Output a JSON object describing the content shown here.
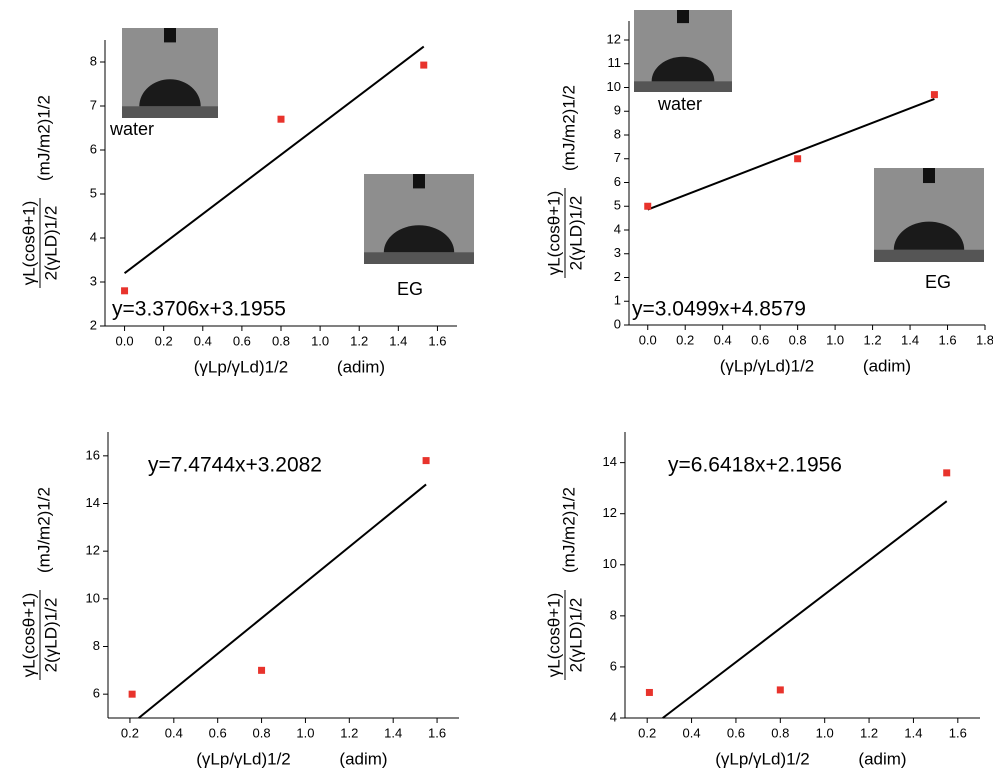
{
  "chart_data": [
    {
      "type": "scatter",
      "color": "#e8332c",
      "line_color": "#000000",
      "x": [
        0,
        0.8,
        1.53
      ],
      "values": [
        2.8,
        6.7,
        7.93
      ],
      "fit": {
        "x": [
          0,
          1.53
        ],
        "y": [
          3.2,
          8.35
        ]
      },
      "annotation": "y=3.3706x+3.1955",
      "insets": [
        "water",
        "EG"
      ],
      "xlabel": {
        "quantity": "(γLp/γLd)1/2",
        "unit": "(adim)"
      },
      "ylabel": {
        "numerator": "γL(cosθ+1)",
        "denominator": "2(γLD)1/2",
        "unit": "(mJ/m2)1/2"
      },
      "xlim": [
        -0.1,
        1.7
      ],
      "xticks": [
        {
          "value": 0,
          "label": "0.0"
        },
        0.2,
        0.4,
        0.6,
        0.8,
        {
          "value": 1,
          "label": "1.0"
        },
        1.2,
        1.4,
        1.6
      ],
      "ylim": [
        2,
        8.5
      ],
      "yticks": [
        2,
        3,
        4,
        5,
        6,
        7,
        8
      ]
    },
    {
      "type": "scatter",
      "color": "#e8332c",
      "line_color": "#000000",
      "x": [
        0,
        0.8,
        1.53
      ],
      "values": [
        5,
        7,
        9.7
      ],
      "fit": {
        "x": [
          0,
          1.53
        ],
        "y": [
          4.86,
          9.52
        ]
      },
      "annotation": "y=3.0499x+4.8579",
      "insets": [
        "water",
        "EG"
      ],
      "xlabel": {
        "quantity": "(γLp/γLd)1/2",
        "unit": "(adim)"
      },
      "ylabel": {
        "numerator": "γL(cosθ+1)",
        "denominator": "2(γLD)1/2",
        "unit": "(mJ/m2)1/2"
      },
      "xlim": [
        -0.1,
        1.8
      ],
      "xticks": [
        {
          "value": 0,
          "label": "0.0"
        },
        0.2,
        0.4,
        0.6,
        0.8,
        {
          "value": 1,
          "label": "1.0"
        },
        1.2,
        1.4,
        1.6,
        1.8
      ],
      "ylim": [
        0,
        12.8
      ],
      "yticks": [
        0,
        1,
        2,
        3,
        4,
        5,
        6,
        7,
        8,
        9,
        10,
        11,
        12
      ]
    },
    {
      "type": "scatter",
      "color": "#e8332c",
      "line_color": "#000000",
      "x": [
        0.21,
        0.8,
        1.55
      ],
      "values": [
        6,
        7,
        15.8
      ],
      "fit": {
        "x": [
          0.24,
          1.55
        ],
        "y": [
          5,
          14.8
        ]
      },
      "annotation": "y=7.4744x+3.2082",
      "xlabel": {
        "quantity": "(γLp/γLd)1/2",
        "unit": "(adim)"
      },
      "ylabel": {
        "numerator": "γL(cosθ+1)",
        "denominator": "2(γLD)1/2",
        "unit": "(mJ/m2)1/2"
      },
      "xlim": [
        0.1,
        1.7
      ],
      "xticks": [
        0.2,
        0.4,
        0.6,
        0.8,
        {
          "value": 1,
          "label": "1.0"
        },
        1.2,
        1.4,
        1.6
      ],
      "ylim": [
        5,
        17
      ],
      "yticks": [
        6,
        8,
        10,
        12,
        14,
        16
      ]
    },
    {
      "type": "scatter",
      "color": "#e8332c",
      "line_color": "#000000",
      "x": [
        0.21,
        0.8,
        1.55
      ],
      "values": [
        5,
        5.1,
        13.6
      ],
      "fit": {
        "x": [
          0.27,
          1.55
        ],
        "y": [
          4,
          12.49
        ]
      },
      "annotation": "y=6.6418x+2.1956",
      "xlabel": {
        "quantity": "(γLp/γLd)1/2",
        "unit": "(adim)"
      },
      "ylabel": {
        "numerator": "γL(cosθ+1)",
        "denominator": "2(γLD)1/2",
        "unit": "(mJ/m2)1/2"
      },
      "xlim": [
        0.1,
        1.7
      ],
      "xticks": [
        0.2,
        0.4,
        0.6,
        0.8,
        {
          "value": 1,
          "label": "1.0"
        },
        1.2,
        1.4,
        1.6
      ],
      "ylim": [
        4,
        15.2
      ],
      "yticks": [
        4,
        6,
        8,
        10,
        12,
        14
      ]
    }
  ]
}
